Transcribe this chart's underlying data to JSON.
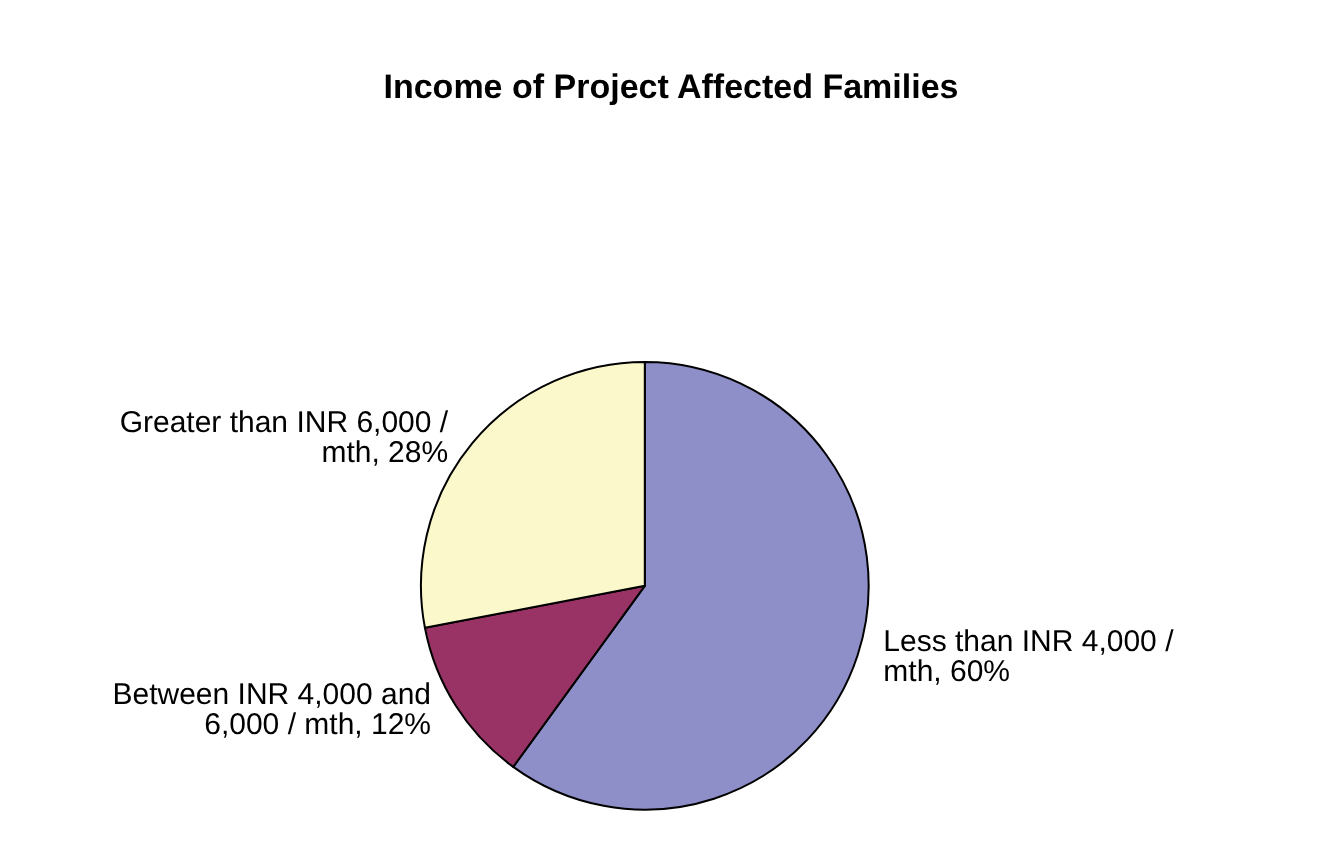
{
  "chart_data": {
    "type": "pie",
    "title": "Income of Project Affected Families",
    "categories": [
      "Less than INR 4,000 / mth",
      "Between INR 4,000 and 6,000 / mth",
      "Greater than INR 6,000 / mth"
    ],
    "values": [
      60,
      12,
      28
    ],
    "value_labels": [
      "60%",
      "12%",
      "28%"
    ],
    "colors": [
      "#8e8fc9",
      "#993366",
      "#fbf8cb"
    ],
    "legend": false
  }
}
